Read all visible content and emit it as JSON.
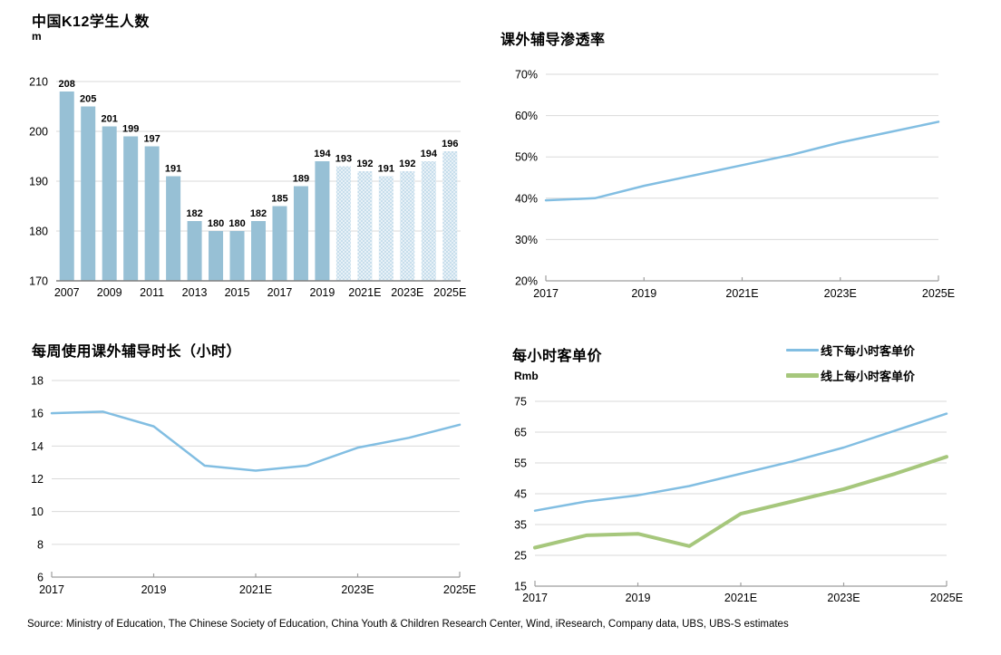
{
  "page": {
    "source_note": "Source: Ministry of Education, The Chinese Society of Education, China Youth & Children Research Center, Wind, iResearch, Company data, UBS, UBS-S estimates"
  },
  "colors": {
    "bar": "#97C0D5",
    "bar_estimate_bg": "#C7DEEC",
    "bar_estimate_dot": "#FFFFFF",
    "gridline": "#DADADA",
    "axis": "#9E9E9E",
    "baseline": "#808080",
    "text": "#000000"
  },
  "chart_data": [
    {
      "type": "bar",
      "title": "中国K12学生人数",
      "unit": "m",
      "categories": [
        "2007",
        "2008",
        "2009",
        "2010",
        "2011",
        "2012",
        "2013",
        "2014",
        "2015",
        "2016",
        "2017",
        "2018",
        "2019",
        "2020E",
        "2021E",
        "2022E",
        "2023E",
        "2024E",
        "2025E"
      ],
      "values": [
        208,
        205,
        201,
        199,
        197,
        191,
        182,
        180,
        180,
        182,
        185,
        189,
        194,
        193,
        192,
        191,
        192,
        194,
        196
      ],
      "solid_count": 13,
      "x_tick_labels": [
        "2007",
        "2009",
        "2011",
        "2013",
        "2015",
        "2017",
        "2019",
        "2021E",
        "2023E",
        "2025E"
      ],
      "ylim": [
        170,
        210
      ],
      "y_ticks": [
        170,
        180,
        190,
        200,
        210
      ],
      "grid": true,
      "legend_position": "none"
    },
    {
      "type": "line",
      "title": "课外辅导渗透率",
      "x": [
        "2017",
        "2018",
        "2019",
        "2020E",
        "2021E",
        "2022E",
        "2023E",
        "2024E",
        "2025E"
      ],
      "x_tick_labels": [
        "2017",
        "2019",
        "2021E",
        "2023E",
        "2025E"
      ],
      "series": [
        {
          "name": "课外辅导渗透率",
          "color": "#82BEE2",
          "width": 2.5,
          "values": [
            39.5,
            40,
            43,
            45.5,
            48,
            50.5,
            53.5,
            56,
            58.5
          ]
        }
      ],
      "ylim": [
        20,
        70
      ],
      "y_ticks": [
        20,
        30,
        40,
        50,
        60,
        70
      ],
      "y_suffix": "%",
      "grid": true,
      "legend_position": "none"
    },
    {
      "type": "line",
      "title": "每周使用课外辅导时长（小时）",
      "x": [
        "2017",
        "2018",
        "2019",
        "2020E",
        "2021E",
        "2022E",
        "2023E",
        "2024E",
        "2025E"
      ],
      "x_tick_labels": [
        "2017",
        "2019",
        "2021E",
        "2023E",
        "2025E"
      ],
      "series": [
        {
          "name": "每周使用课外辅导时长",
          "color": "#82BEE2",
          "width": 2.5,
          "values": [
            16,
            16.1,
            15.2,
            12.8,
            12.5,
            12.8,
            13.9,
            14.5,
            15.3
          ]
        }
      ],
      "ylim": [
        6,
        18
      ],
      "y_ticks": [
        6,
        8,
        10,
        12,
        14,
        16,
        18
      ],
      "grid": true,
      "legend_position": "none"
    },
    {
      "type": "line",
      "title": "每小时客单价",
      "unit": "Rmb",
      "x": [
        "2017",
        "2018",
        "2019",
        "2020E",
        "2021E",
        "2022E",
        "2023E",
        "2024E",
        "2025E"
      ],
      "x_tick_labels": [
        "2017",
        "2019",
        "2021E",
        "2023E",
        "2025E"
      ],
      "series": [
        {
          "name": "线下每小时客单价",
          "color": "#82BEE2",
          "width": 2.5,
          "values": [
            39.5,
            42.5,
            44.5,
            47.5,
            51.5,
            55.5,
            60,
            65.5,
            71
          ]
        },
        {
          "name": "线上每小时客单价",
          "color": "#A6C77C",
          "width": 4,
          "values": [
            27.5,
            31.5,
            32,
            28,
            38.5,
            42.5,
            46.5,
            51.5,
            57
          ]
        }
      ],
      "legend": [
        {
          "label": "线下每小时客单价",
          "color": "#82BEE2",
          "thickness": 3
        },
        {
          "label": "线上每小时客单价",
          "color": "#A6C77C",
          "thickness": 5
        }
      ],
      "ylim": [
        15,
        75
      ],
      "y_ticks": [
        15,
        25,
        35,
        45,
        55,
        65,
        75
      ],
      "grid": true,
      "legend_position": "top-right"
    }
  ]
}
